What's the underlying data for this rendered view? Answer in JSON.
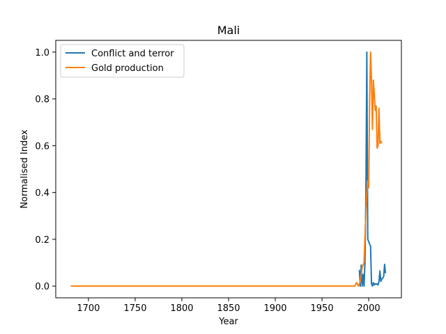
{
  "chart_data": {
    "type": "line",
    "title": "Mali",
    "xlabel": "Year",
    "ylabel": "Normalised Index",
    "xlim": [
      1665,
      2035
    ],
    "ylim": [
      -0.05,
      1.05
    ],
    "xticks": [
      1700,
      1750,
      1800,
      1850,
      1900,
      1950,
      2000
    ],
    "yticks": [
      0.0,
      0.2,
      0.4,
      0.6,
      0.8,
      1.0
    ],
    "grid": false,
    "legend_position": "top-left",
    "series": [
      {
        "name": "Conflict and terror",
        "color": "#1f77b4",
        "points": [
          [
            1990,
            0.07
          ],
          [
            1991,
            0.0
          ],
          [
            1992,
            0.09
          ],
          [
            1993,
            0.0
          ],
          [
            1994,
            0.05
          ],
          [
            1995,
            0.0
          ],
          [
            1996,
            0.1
          ],
          [
            1997,
            0.4
          ],
          [
            1998,
            1.0
          ],
          [
            1999,
            0.2
          ],
          [
            2000,
            0.19
          ],
          [
            2001,
            0.18
          ],
          [
            2002,
            0.17
          ],
          [
            2003,
            0.01
          ],
          [
            2004,
            0.0
          ],
          [
            2005,
            0.015
          ],
          [
            2006,
            0.005
          ],
          [
            2007,
            0.01
          ],
          [
            2008,
            0.008
          ],
          [
            2009,
            0.01
          ],
          [
            2010,
            0.005
          ],
          [
            2011,
            0.02
          ],
          [
            2012,
            0.065
          ],
          [
            2013,
            0.02
          ],
          [
            2014,
            0.03
          ],
          [
            2015,
            0.035
          ],
          [
            2016,
            0.04
          ],
          [
            2017,
            0.093
          ],
          [
            2018,
            0.055
          ]
        ]
      },
      {
        "name": "Gold production",
        "color": "#ff7f0e",
        "points": [
          [
            1681,
            0.0
          ],
          [
            1985,
            0.0
          ],
          [
            1987,
            0.015
          ],
          [
            1989,
            0.0
          ],
          [
            1991,
            0.02
          ],
          [
            1993,
            0.08
          ],
          [
            1995,
            0.1
          ],
          [
            1997,
            0.32
          ],
          [
            1998,
            0.4
          ],
          [
            1999,
            0.45
          ],
          [
            2000,
            0.42
          ],
          [
            2001,
            0.8
          ],
          [
            2002,
            1.0
          ],
          [
            2003,
            0.88
          ],
          [
            2004,
            0.67
          ],
          [
            2005,
            0.88
          ],
          [
            2006,
            0.82
          ],
          [
            2007,
            0.75
          ],
          [
            2008,
            0.77
          ],
          [
            2009,
            0.59
          ],
          [
            2010,
            0.6
          ],
          [
            2011,
            0.76
          ],
          [
            2012,
            0.61
          ],
          [
            2013,
            0.62
          ],
          [
            2014,
            0.61
          ]
        ]
      }
    ]
  }
}
